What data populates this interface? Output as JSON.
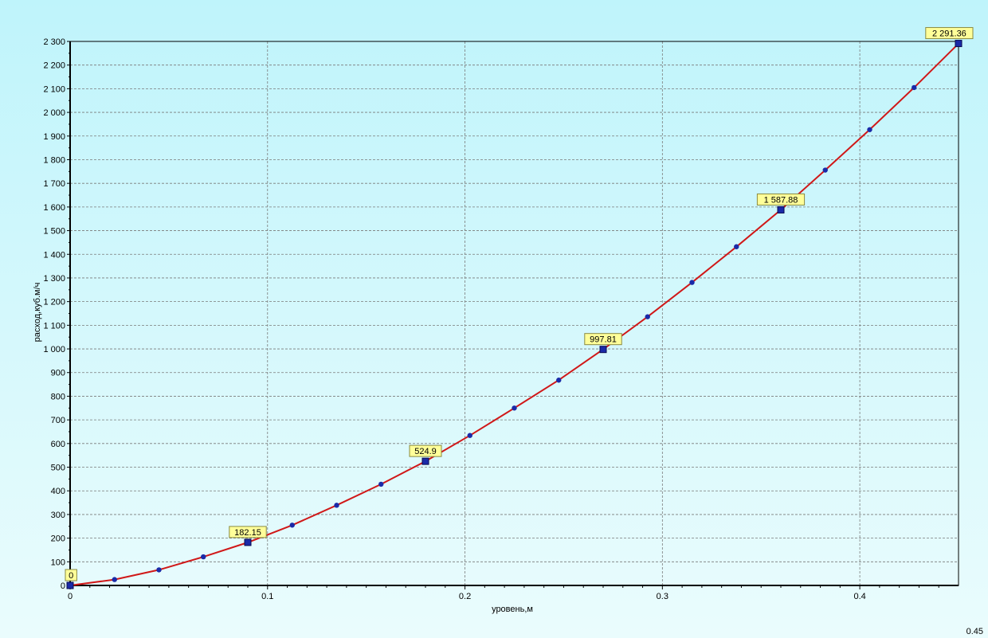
{
  "chart_data": {
    "type": "line",
    "title": "",
    "xlabel": "уровень,м",
    "ylabel": "расход,куб.м/ч",
    "xlim": [
      0,
      0.45
    ],
    "ylim": [
      0,
      2300
    ],
    "x_ticks": [
      0,
      0.1,
      0.2,
      0.3,
      0.4
    ],
    "x_tick_labels": [
      "0",
      "0.1",
      "0.2",
      "0.3",
      "0.4"
    ],
    "y_ticks": [
      0,
      100,
      200,
      300,
      400,
      500,
      600,
      700,
      800,
      900,
      1000,
      1100,
      1200,
      1300,
      1400,
      1500,
      1600,
      1700,
      1800,
      1900,
      2000,
      2100,
      2200,
      2300
    ],
    "y_tick_labels": [
      "0",
      "100",
      "200",
      "300",
      "400",
      "500",
      "600",
      "700",
      "800",
      "900",
      "1 000",
      "1 100",
      "1 200",
      "1 300",
      "1 400",
      "1 500",
      "1 600",
      "1 700",
      "1 800",
      "1 900",
      "2 000",
      "2 100",
      "2 200",
      "2 300"
    ],
    "grid": true,
    "x_end_label": "0.45",
    "series": [
      {
        "x": [
          0,
          0.0225,
          0.045,
          0.0675,
          0.09,
          0.1125,
          0.135,
          0.1575,
          0.18,
          0.2025,
          0.225,
          0.2475,
          0.27,
          0.2925,
          0.315,
          0.3375,
          0.36,
          0.3825,
          0.405,
          0.4275,
          0.45
        ],
        "y": [
          0,
          25,
          66,
          121,
          182,
          255,
          339,
          428,
          525,
          634,
          750,
          868,
          998,
          1136,
          1281,
          1432,
          1588,
          1756,
          1927,
          2105,
          2291
        ]
      }
    ],
    "labeled_points": [
      {
        "x": 0,
        "y": 0,
        "label": "0"
      },
      {
        "x": 0.09,
        "y": 182.15,
        "label": "182.15"
      },
      {
        "x": 0.18,
        "y": 524.9,
        "label": "524.9"
      },
      {
        "x": 0.27,
        "y": 997.81,
        "label": "997.81"
      },
      {
        "x": 0.36,
        "y": 1587.88,
        "label": "1 587.88"
      },
      {
        "x": 0.45,
        "y": 2291.36,
        "label": "2 291.36"
      }
    ],
    "colors": {
      "background_top": "#bff4fb",
      "background_bottom": "#eafcfd",
      "line": "#d01818",
      "marker": "#1a2aa8",
      "label_fill": "#ffff99",
      "grid": "#7a7a7a"
    }
  }
}
